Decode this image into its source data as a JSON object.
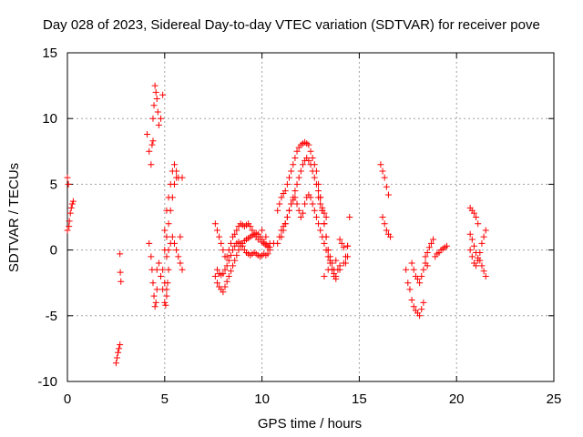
{
  "chart_data": {
    "type": "scatter",
    "title": "Day 028 of 2023, Sidereal Day-to-day VTEC variation (SDTVAR) for receiver pove",
    "xlabel": "GPS time / hours",
    "ylabel": "SDTVAR / TECUs",
    "xlim": [
      0,
      25
    ],
    "ylim": [
      -10,
      15
    ],
    "xticks": [
      0,
      5,
      10,
      15,
      20,
      25
    ],
    "yticks": [
      -10,
      -5,
      0,
      5,
      10,
      15
    ],
    "grid": true,
    "marker": "+",
    "color": "#ff0000",
    "series": [
      {
        "name": "SDTVAR",
        "segments": [
          {
            "x": [
              0.0,
              0.1,
              0.15,
              0.2,
              0.25,
              0.3
            ],
            "y": [
              1.5,
              2.2,
              2.8,
              3.2,
              3.5,
              3.7
            ]
          },
          {
            "x": [
              0.0,
              0.05,
              0.08
            ],
            "y": [
              5.5,
              5.0,
              1.8
            ]
          },
          {
            "x": [
              2.5,
              2.55,
              2.6,
              2.65,
              2.7
            ],
            "y": [
              -8.6,
              -8.2,
              -7.8,
              -7.5,
              -7.2
            ]
          },
          {
            "x": [
              2.7,
              2.72,
              2.75
            ],
            "y": [
              -0.3,
              -1.7,
              -2.4
            ]
          },
          {
            "x": [
              4.1,
              4.2,
              4.3,
              4.35,
              4.4
            ],
            "y": [
              8.8,
              7.5,
              6.5,
              8.0,
              8.3
            ]
          },
          {
            "x": [
              4.4,
              4.45,
              4.5,
              4.55,
              4.6,
              4.65,
              4.7,
              4.8,
              4.9
            ],
            "y": [
              10.0,
              11.0,
              12.5,
              12.0,
              11.5,
              10.5,
              9.5,
              10.0,
              11.8
            ]
          },
          {
            "x": [
              4.2,
              4.3,
              4.35,
              4.4,
              4.45,
              4.5,
              4.55,
              4.6
            ],
            "y": [
              0.5,
              -0.5,
              -1.5,
              -2.5,
              -3.5,
              -4.3,
              -4.0,
              -3.0
            ]
          },
          {
            "x": [
              4.6,
              4.7,
              4.8,
              4.9,
              5.0,
              5.1
            ],
            "y": [
              -1.5,
              -1.0,
              -2.0,
              -1.5,
              -2.5,
              -3.0
            ]
          },
          {
            "x": [
              4.9,
              5.0,
              5.05,
              5.1,
              5.15,
              5.2
            ],
            "y": [
              -3.0,
              -4.0,
              -4.2,
              -3.5,
              -2.5,
              -1.5
            ]
          },
          {
            "x": [
              5.0,
              5.1,
              5.2,
              5.3,
              5.4,
              5.5,
              5.6,
              5.7
            ],
            "y": [
              1.5,
              3.0,
              4.0,
              5.0,
              6.0,
              6.5,
              6.0,
              5.5
            ]
          },
          {
            "x": [
              5.0,
              5.1,
              5.2,
              5.3,
              5.4,
              5.5,
              5.6
            ],
            "y": [
              0.0,
              1.0,
              2.0,
              3.0,
              4.0,
              5.0,
              5.5
            ]
          },
          {
            "x": [
              5.1,
              5.2,
              5.3,
              5.4,
              5.5,
              5.6,
              5.7,
              5.8,
              5.9
            ],
            "y": [
              -0.5,
              0.0,
              0.5,
              1.0,
              0.5,
              0.0,
              -0.5,
              -1.0,
              -1.5
            ]
          },
          {
            "x": [
              5.8,
              5.9
            ],
            "y": [
              1.0,
              5.5
            ]
          },
          {
            "x": [
              7.6,
              7.7,
              7.8,
              7.9,
              8.0,
              8.1,
              8.2,
              8.3,
              8.4,
              8.5,
              8.6,
              8.7,
              8.8,
              8.9,
              9.0,
              9.1,
              9.2,
              9.3,
              9.4,
              9.5,
              9.6,
              9.7,
              9.8,
              9.9,
              10.0,
              10.1,
              10.2,
              10.3,
              10.4
            ],
            "y": [
              -2.0,
              -2.5,
              -2.8,
              -3.0,
              -3.2,
              -2.8,
              -2.4,
              -2.0,
              -1.6,
              -1.2,
              -0.8,
              -0.4,
              0.0,
              0.3,
              0.5,
              0.7,
              0.8,
              0.9,
              1.0,
              1.1,
              1.2,
              1.3,
              1.2,
              1.0,
              0.8,
              0.6,
              0.4,
              0.2,
              0.0
            ]
          },
          {
            "x": [
              7.7,
              7.8,
              7.9,
              8.0,
              8.1,
              8.2,
              8.3,
              8.4,
              8.5,
              8.6,
              8.7,
              8.8,
              8.9,
              9.0,
              9.1,
              9.2,
              9.3,
              9.4,
              9.5,
              9.6,
              9.7,
              9.8,
              9.9,
              10.0,
              10.1,
              10.2,
              10.3
            ],
            "y": [
              -1.5,
              -1.8,
              -1.9,
              -1.8,
              -1.5,
              -1.2,
              -0.8,
              -0.4,
              0.0,
              0.3,
              0.5,
              0.6,
              0.5,
              0.3,
              0.0,
              -0.2,
              -0.3,
              -0.4,
              -0.3,
              -0.2,
              -0.3,
              -0.4,
              -0.5,
              -0.4,
              -0.3,
              -0.4,
              -0.3
            ]
          },
          {
            "x": [
              7.6,
              7.7,
              7.8,
              7.9,
              8.0,
              8.1,
              8.2,
              8.3,
              8.4,
              8.5,
              8.6,
              8.7,
              8.8,
              8.9,
              9.0,
              9.1,
              9.2,
              9.3,
              9.4,
              9.5,
              9.6,
              9.7,
              9.8,
              9.9,
              10.0,
              10.1,
              10.2,
              10.3,
              10.4
            ],
            "y": [
              2.0,
              1.5,
              1.0,
              0.5,
              0.0,
              -0.5,
              -0.5,
              0.0,
              0.5,
              1.0,
              1.2,
              1.5,
              1.8,
              2.0,
              1.9,
              1.8,
              1.9,
              2.0,
              1.8,
              1.5,
              1.2,
              1.0,
              0.8,
              0.8,
              0.6,
              0.5,
              0.4,
              0.3,
              0.2
            ]
          },
          {
            "x": [
              10.0,
              10.2,
              10.4,
              10.6
            ],
            "y": [
              1.5,
              1.0,
              0.5,
              0.5
            ]
          },
          {
            "x": [
              10.8,
              10.9,
              11.0,
              11.1,
              11.2,
              11.3,
              11.4,
              11.5,
              11.6,
              11.7,
              11.8,
              11.9,
              12.0,
              12.1,
              12.2,
              12.3,
              12.4,
              12.5,
              12.6,
              12.7,
              12.8,
              12.9,
              13.0,
              13.1,
              13.2,
              13.3,
              13.4,
              13.5,
              13.6,
              13.7
            ],
            "y": [
              3.0,
              3.5,
              4.0,
              4.3,
              4.5,
              5.0,
              5.5,
              6.0,
              6.5,
              7.0,
              7.5,
              7.8,
              8.0,
              8.1,
              8.2,
              8.1,
              8.0,
              7.5,
              7.0,
              6.5,
              6.0,
              5.0,
              4.0,
              3.0,
              2.0,
              1.0,
              0.0,
              -0.5,
              -1.0,
              -1.5
            ]
          },
          {
            "x": [
              11.0,
              11.1,
              11.2,
              11.3,
              11.4,
              11.5,
              11.6,
              11.7,
              11.8,
              11.9,
              12.0,
              12.1,
              12.2,
              12.3,
              12.4,
              12.5,
              12.6,
              12.7,
              12.8,
              12.9,
              13.0,
              13.1,
              13.2,
              13.3,
              13.4,
              13.5,
              13.6,
              13.7,
              13.8
            ],
            "y": [
              1.0,
              1.5,
              2.0,
              2.5,
              3.0,
              3.5,
              4.0,
              4.5,
              5.0,
              5.5,
              6.0,
              6.5,
              6.8,
              7.0,
              6.8,
              6.5,
              6.0,
              5.5,
              5.0,
              4.5,
              4.0,
              3.0,
              2.0,
              1.0,
              0.0,
              -0.8,
              -1.5,
              -2.0,
              -2.2
            ]
          },
          {
            "x": [
              10.8,
              10.9,
              11.0,
              11.1,
              11.2,
              11.3,
              11.4,
              11.5,
              11.6,
              11.7,
              11.8,
              11.9,
              12.0,
              12.1,
              12.2,
              12.3,
              12.4,
              12.5,
              12.6,
              12.7,
              12.8,
              12.9,
              13.0,
              13.1,
              13.2,
              13.3,
              13.4,
              13.5,
              13.6,
              13.7,
              13.8,
              13.9,
              14.0
            ],
            "y": [
              0.5,
              1.0,
              1.5,
              1.8,
              2.0,
              2.5,
              3.0,
              3.5,
              3.8,
              4.0,
              3.5,
              3.0,
              2.5,
              2.8,
              3.5,
              4.0,
              4.2,
              4.0,
              3.5,
              3.0,
              2.5,
              2.0,
              1.5,
              1.0,
              0.5,
              0.0,
              -0.5,
              -1.0,
              -1.5,
              -1.8,
              -2.0,
              -1.5,
              -1.2
            ]
          },
          {
            "x": [
              12.9,
              13.0,
              13.1,
              13.2,
              13.3
            ],
            "y": [
              4.0,
              3.5,
              3.2,
              2.8,
              2.5
            ]
          },
          {
            "x": [
              13.2,
              13.4,
              13.6,
              13.8,
              14.0,
              14.2,
              14.4
            ],
            "y": [
              -2.0,
              -1.5,
              -1.0,
              -0.8,
              -1.5,
              -1.0,
              -0.5
            ]
          },
          {
            "x": [
              14.0,
              14.1,
              14.2,
              14.3,
              14.4
            ],
            "y": [
              0.8,
              0.5,
              0.2,
              -0.5,
              0.3
            ]
          },
          {
            "x": [
              14.5
            ],
            "y": [
              2.5
            ]
          },
          {
            "x": [
              14.3,
              14.4
            ],
            "y": [
              -1.0,
              0.3
            ]
          },
          {
            "x": [
              16.1,
              16.2,
              16.3,
              16.4,
              16.5
            ],
            "y": [
              6.5,
              6.0,
              5.5,
              4.8,
              4.2
            ]
          },
          {
            "x": [
              16.2,
              16.3,
              16.4,
              16.5,
              16.6
            ],
            "y": [
              2.5,
              2.0,
              1.5,
              1.2,
              1.0
            ]
          },
          {
            "x": [
              17.4,
              17.5,
              17.6,
              17.7,
              17.8,
              17.9,
              18.0,
              18.1,
              18.2,
              18.3
            ],
            "y": [
              -1.5,
              -2.5,
              -3.0,
              -3.8,
              -4.3,
              -4.6,
              -4.8,
              -5.0,
              -4.5,
              -4.0
            ]
          },
          {
            "x": [
              17.7,
              17.8,
              17.9,
              18.0,
              18.1,
              18.2,
              18.3,
              18.4,
              18.5
            ],
            "y": [
              -1.0,
              -1.5,
              -2.0,
              -2.2,
              -2.5,
              -2.0,
              -1.5,
              -1.0,
              -1.2
            ]
          },
          {
            "x": [
              18.4,
              18.5,
              18.6,
              18.7,
              18.8
            ],
            "y": [
              -0.5,
              -0.2,
              0.2,
              0.5,
              0.8
            ]
          },
          {
            "x": [
              18.9,
              19.0,
              19.1,
              19.2,
              19.3,
              19.4,
              19.5
            ],
            "y": [
              -0.5,
              -0.3,
              -0.2,
              0.0,
              0.1,
              0.2,
              0.3
            ]
          },
          {
            "x": [
              20.7,
              20.8,
              20.9,
              21.0,
              21.1
            ],
            "y": [
              3.2,
              3.0,
              2.8,
              2.5,
              2.0
            ]
          },
          {
            "x": [
              20.7,
              20.8,
              20.9,
              21.0,
              21.1,
              21.2,
              21.3,
              21.4,
              21.5
            ],
            "y": [
              0.0,
              -0.5,
              -1.0,
              -1.2,
              -0.8,
              -0.2,
              0.5,
              1.0,
              1.5
            ]
          },
          {
            "x": [
              20.7,
              20.8,
              20.9,
              21.0,
              21.1,
              21.2,
              21.3,
              21.4,
              21.5
            ],
            "y": [
              1.2,
              0.8,
              0.3,
              -0.2,
              -0.6,
              -0.8,
              -1.2,
              -1.6,
              -2.0
            ]
          }
        ]
      }
    ]
  }
}
